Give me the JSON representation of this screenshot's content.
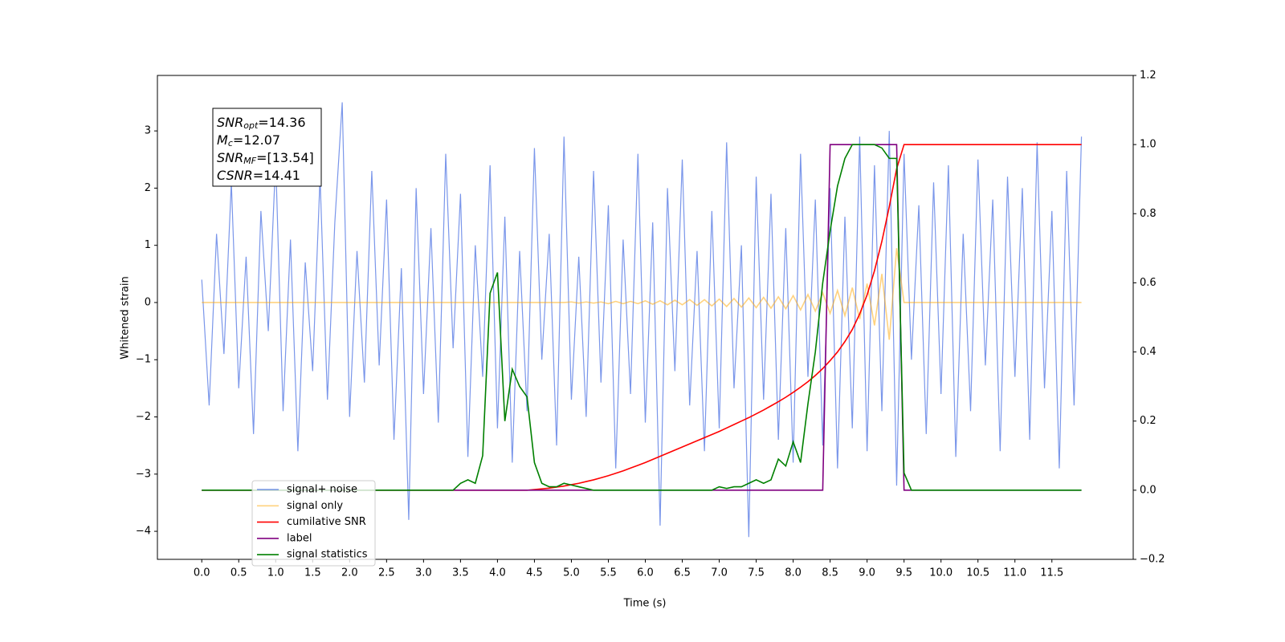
{
  "chart_data": {
    "type": "line",
    "xlabel": "Time (s)",
    "ylabel": "Whitened strain",
    "xlim": [
      -0.6,
      12.6
    ],
    "ylim": [
      -4.49,
      3.97
    ],
    "y2lim": [
      -0.2,
      1.2
    ],
    "xticks": [
      {
        "value": 0,
        "label": "0.0"
      },
      {
        "value": 0.5,
        "label": "0.5"
      },
      {
        "value": 1,
        "label": "1.0"
      },
      {
        "value": 1.5,
        "label": "1.5"
      },
      {
        "value": 2,
        "label": "2.0"
      },
      {
        "value": 2.5,
        "label": "2.5"
      },
      {
        "value": 3,
        "label": "3.0"
      },
      {
        "value": 3.5,
        "label": "3.5"
      },
      {
        "value": 4,
        "label": "4.0"
      },
      {
        "value": 4.5,
        "label": "4.5"
      },
      {
        "value": 5,
        "label": "5.0"
      },
      {
        "value": 5.5,
        "label": "5.5"
      },
      {
        "value": 6,
        "label": "6.0"
      },
      {
        "value": 6.5,
        "label": "6.5"
      },
      {
        "value": 7,
        "label": "7.0"
      },
      {
        "value": 7.5,
        "label": "7.5"
      },
      {
        "value": 8,
        "label": "8.0"
      },
      {
        "value": 8.5,
        "label": "8.5"
      },
      {
        "value": 9,
        "label": "9.0"
      },
      {
        "value": 9.5,
        "label": "9.5"
      },
      {
        "value": 10,
        "label": "10.0"
      },
      {
        "value": 10.5,
        "label": "10.5"
      },
      {
        "value": 11,
        "label": "11.0"
      },
      {
        "value": 11.5,
        "label": "11.5"
      }
    ],
    "yticks": [
      {
        "value": -4,
        "label": "−4"
      },
      {
        "value": -3,
        "label": "−3"
      },
      {
        "value": -2,
        "label": "−2"
      },
      {
        "value": -1,
        "label": "−1"
      },
      0,
      1,
      2,
      3
    ],
    "y2ticks": [
      {
        "value": -0.2,
        "label": "−0.2"
      },
      {
        "value": 0,
        "label": "0.0"
      },
      {
        "value": 0.2,
        "label": "0.2"
      },
      {
        "value": 0.4,
        "label": "0.4"
      },
      {
        "value": 0.6,
        "label": "0.6"
      },
      {
        "value": 0.8,
        "label": "0.8"
      },
      {
        "value": 1,
        "label": "1.0"
      },
      {
        "value": 1.2,
        "label": "1.2"
      }
    ],
    "legend_loc": "lower left",
    "annotations": [
      {
        "main": "SNR",
        "sub": "opt",
        "rest": "=14.36"
      },
      {
        "main": "M",
        "sub": "c",
        "rest": "=12.07"
      },
      {
        "main": "SNR",
        "sub": "MF",
        "rest": "=[13.54]"
      },
      {
        "main": "CSNR",
        "rest": "=14.41"
      }
    ],
    "x": [
      0,
      0.1,
      0.2,
      0.3,
      0.4,
      0.5,
      0.6,
      0.7,
      0.8,
      0.9,
      1,
      1.1,
      1.2,
      1.3,
      1.4,
      1.5,
      1.6,
      1.7,
      1.8,
      1.9,
      2,
      2.1,
      2.2,
      2.3,
      2.4,
      2.5,
      2.6,
      2.7,
      2.8,
      2.9,
      3,
      3.1,
      3.2,
      3.3,
      3.4,
      3.5,
      3.6,
      3.7,
      3.8,
      3.9,
      4,
      4.1,
      4.2,
      4.3,
      4.4,
      4.5,
      4.6,
      4.7,
      4.8,
      4.9,
      5,
      5.1,
      5.2,
      5.3,
      5.4,
      5.5,
      5.6,
      5.7,
      5.8,
      5.9,
      6,
      6.1,
      6.2,
      6.3,
      6.4,
      6.5,
      6.6,
      6.7,
      6.8,
      6.9,
      7,
      7.1,
      7.2,
      7.3,
      7.4,
      7.5,
      7.6,
      7.7,
      7.8,
      7.9,
      8,
      8.1,
      8.2,
      8.3,
      8.4,
      8.5,
      8.6,
      8.7,
      8.8,
      8.9,
      9,
      9.1,
      9.2,
      9.3,
      9.4,
      9.5,
      9.6,
      9.7,
      9.8,
      9.9,
      10,
      10.1,
      10.2,
      10.3,
      10.4,
      10.5,
      10.6,
      10.7,
      10.8,
      10.9,
      11,
      11.1,
      11.2,
      11.3,
      11.4,
      11.5,
      11.6,
      11.7,
      11.8,
      11.9
    ],
    "series": [
      {
        "name": "signal+ noise",
        "color": "#4169e1",
        "alpha": 0.7,
        "axis": "y",
        "values": [
          0.4,
          -1.8,
          1.2,
          -0.9,
          2.1,
          -1.5,
          0.8,
          -2.3,
          1.6,
          -0.5,
          2.5,
          -1.9,
          1.1,
          -2.6,
          0.7,
          -1.2,
          2.2,
          -1.7,
          1.4,
          3.5,
          -2.0,
          0.9,
          -1.4,
          2.3,
          -1.1,
          1.8,
          -2.4,
          0.6,
          -3.8,
          2.0,
          -1.6,
          1.3,
          -2.1,
          2.6,
          -0.8,
          1.9,
          -2.7,
          1.0,
          -1.3,
          2.4,
          -2.2,
          1.5,
          -2.8,
          0.9,
          -1.9,
          2.7,
          -1.0,
          1.2,
          -2.5,
          2.9,
          -1.7,
          0.8,
          -2.0,
          2.3,
          -1.4,
          1.7,
          -2.9,
          1.1,
          -1.6,
          2.6,
          -2.1,
          1.4,
          -3.9,
          2.0,
          -1.2,
          2.5,
          -1.8,
          0.9,
          -2.6,
          1.6,
          -2.2,
          2.8,
          -1.5,
          1.0,
          -4.1,
          2.2,
          -1.7,
          1.9,
          -2.4,
          1.3,
          -2.8,
          2.6,
          -1.3,
          1.8,
          -2.5,
          2.0,
          -2.9,
          1.5,
          -2.2,
          2.9,
          -2.6,
          2.4,
          -1.9,
          3.0,
          -3.2,
          2.6,
          -1.0,
          1.7,
          -2.3,
          2.1,
          -1.6,
          2.4,
          -2.7,
          1.2,
          -1.9,
          2.5,
          -1.1,
          1.8,
          -2.6,
          2.2,
          -1.3,
          2.0,
          -2.4,
          2.8,
          -1.5,
          1.6,
          -2.9,
          2.3,
          -1.8,
          2.9
        ]
      },
      {
        "name": "signal only",
        "color": "#ffa500",
        "alpha": 0.5,
        "axis": "y",
        "values": [
          0,
          0,
          0,
          0,
          0,
          0,
          0,
          0,
          0,
          0,
          0,
          0,
          0,
          0,
          0,
          0,
          0,
          0,
          0,
          0,
          0,
          0,
          0,
          0,
          0,
          0,
          0,
          0,
          0,
          0,
          0,
          0,
          0,
          0,
          0,
          0,
          0,
          0,
          0,
          0,
          0,
          0,
          0,
          0,
          0,
          0,
          0,
          0,
          0,
          0,
          0.01,
          -0.01,
          0.01,
          -0.01,
          0.01,
          -0.02,
          0.02,
          -0.02,
          0.02,
          -0.02,
          0.03,
          -0.03,
          0.03,
          -0.04,
          0.04,
          -0.04,
          0.05,
          -0.05,
          0.05,
          -0.06,
          0.06,
          -0.07,
          0.07,
          -0.08,
          0.08,
          -0.09,
          0.09,
          -0.1,
          0.1,
          -0.11,
          0.12,
          -0.13,
          0.14,
          -0.15,
          0.17,
          -0.19,
          0.21,
          -0.23,
          0.26,
          -0.29,
          0.33,
          -0.4,
          0.5,
          -0.65,
          0.95,
          0,
          0,
          0,
          0,
          0,
          0,
          0,
          0,
          0,
          0,
          0,
          0,
          0,
          0,
          0,
          0,
          0,
          0,
          0,
          0,
          0,
          0,
          0,
          0,
          0
        ]
      },
      {
        "name": "cumilative SNR",
        "color": "#ff0000",
        "alpha": 1,
        "axis": "y2",
        "values": [
          0,
          0,
          0,
          0,
          0,
          0,
          0,
          0,
          0,
          0,
          0,
          0,
          0,
          0,
          0,
          0,
          0,
          0,
          0,
          0,
          0,
          0,
          0,
          0,
          0,
          0,
          0,
          0,
          0,
          0,
          0,
          0,
          0,
          0,
          0,
          0,
          0,
          0,
          0,
          0,
          0,
          0,
          0,
          0,
          0,
          0.002,
          0.004,
          0.006,
          0.009,
          0.012,
          0.016,
          0.02,
          0.025,
          0.03,
          0.036,
          0.042,
          0.049,
          0.056,
          0.064,
          0.072,
          0.08,
          0.089,
          0.098,
          0.107,
          0.116,
          0.125,
          0.134,
          0.143,
          0.152,
          0.161,
          0.17,
          0.18,
          0.19,
          0.2,
          0.21,
          0.221,
          0.232,
          0.244,
          0.256,
          0.269,
          0.283,
          0.298,
          0.314,
          0.332,
          0.352,
          0.375,
          0.4,
          0.43,
          0.465,
          0.51,
          0.565,
          0.635,
          0.72,
          0.82,
          0.93,
          1,
          1,
          1,
          1,
          1,
          1,
          1,
          1,
          1,
          1,
          1,
          1,
          1,
          1,
          1,
          1,
          1,
          1,
          1,
          1,
          1,
          1,
          1,
          1,
          1
        ]
      },
      {
        "name": "label",
        "color": "#800080",
        "alpha": 1,
        "axis": "y2",
        "values": [
          0,
          0,
          0,
          0,
          0,
          0,
          0,
          0,
          0,
          0,
          0,
          0,
          0,
          0,
          0,
          0,
          0,
          0,
          0,
          0,
          0,
          0,
          0,
          0,
          0,
          0,
          0,
          0,
          0,
          0,
          0,
          0,
          0,
          0,
          0,
          0,
          0,
          0,
          0,
          0,
          0,
          0,
          0,
          0,
          0,
          0,
          0,
          0,
          0,
          0,
          0,
          0,
          0,
          0,
          0,
          0,
          0,
          0,
          0,
          0,
          0,
          0,
          0,
          0,
          0,
          0,
          0,
          0,
          0,
          0,
          0,
          0,
          0,
          0,
          0,
          0,
          0,
          0,
          0,
          0,
          0,
          0,
          0,
          0,
          0,
          1,
          1,
          1,
          1,
          1,
          1,
          1,
          1,
          1,
          1,
          0,
          0,
          0,
          0,
          0,
          0,
          0,
          0,
          0,
          0,
          0,
          0,
          0,
          0,
          0,
          0,
          0,
          0,
          0,
          0,
          0,
          0,
          0,
          0,
          0
        ]
      },
      {
        "name": "signal statistics",
        "color": "#008000",
        "alpha": 1,
        "axis": "y2",
        "values": [
          0,
          0,
          0,
          0,
          0,
          0,
          0,
          0,
          0,
          0,
          0,
          0,
          0,
          0,
          0,
          0,
          0,
          0,
          0,
          0,
          0,
          0,
          0,
          0,
          0,
          0,
          0,
          0,
          0,
          0,
          0,
          0,
          0,
          0,
          0,
          0.02,
          0.03,
          0.02,
          0.1,
          0.57,
          0.63,
          0.2,
          0.35,
          0.3,
          0.27,
          0.08,
          0.02,
          0.01,
          0.01,
          0.02,
          0.015,
          0.01,
          0.005,
          0,
          0,
          0,
          0,
          0,
          0,
          0,
          0,
          0,
          0,
          0,
          0,
          0,
          0,
          0,
          0,
          0,
          0.01,
          0.005,
          0.01,
          0.01,
          0.02,
          0.03,
          0.02,
          0.03,
          0.09,
          0.07,
          0.14,
          0.08,
          0.25,
          0.4,
          0.6,
          0.75,
          0.88,
          0.96,
          1,
          1,
          1,
          1,
          0.99,
          0.96,
          0.96,
          0.05,
          0,
          0,
          0,
          0,
          0,
          0,
          0,
          0,
          0,
          0,
          0,
          0,
          0,
          0,
          0,
          0,
          0,
          0,
          0,
          0,
          0,
          0,
          0,
          0
        ]
      }
    ]
  }
}
